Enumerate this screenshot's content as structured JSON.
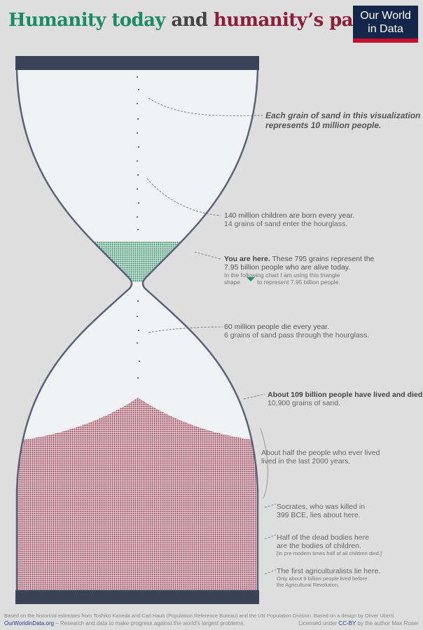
{
  "title": {
    "part1": "Humanity today",
    "part2": " and ",
    "part3": "humanity’s past",
    "color1": "#1c8a65",
    "color2": "#444444",
    "color3": "#8c1f37"
  },
  "logo": {
    "line1": "Our World",
    "line2": "in Data"
  },
  "annotations": {
    "grain": {
      "line1": "Each grain of sand in this visualization",
      "line2": "represents 10 million people."
    },
    "born": {
      "line1": "140 million children are born every year.",
      "line2": "14 grains of sand enter the hourglass."
    },
    "here": {
      "bold": "You are here.",
      "rest": " These 795 grains represent the",
      "line2": "7.95 billion people who are alive today.",
      "line3": "In the following chart I am using this triangle",
      "line4a": "shape",
      "line4b": "to represent 7.95 billion people."
    },
    "die": {
      "line1": "60 million people die every year.",
      "line2": "6 grains of sand pass through the hourglass."
    },
    "lived": {
      "line1": "About 109 billion people have lived and died.",
      "line2": "10,900 grains of sand."
    },
    "half": {
      "line1": "About half the people who ever lived",
      "line2": "lived in the last 2000 years."
    },
    "socrates": {
      "line1": "Socrates, who was killed in",
      "line2": "399 BCE, lies about here."
    },
    "children": {
      "line1": "Half of the dead bodies here",
      "line2": "are the bodies of children.",
      "line3": "[In pre-modern times half of all children died.]"
    },
    "agri": {
      "line1": "The first agriculturalists lie here.",
      "line2": "Only about 9 billion people lived before",
      "line3": "the Agricultural Revolution."
    }
  },
  "footer": {
    "line1": "Based on the historical estimates from Toshiko Kaneda and Carl Haub (Population Reference Bureau) and the UN Population Division. Based on a design by Oliver Uberti.",
    "site": "OurWorldinData.org",
    "tagline": " – Research and data to make progress against the world’s largest problems.",
    "license_pre": "Licensed under ",
    "license": "CC-BY",
    "license_post": " by the author Max Roser"
  },
  "colors": {
    "living": "#2e8a6b",
    "dead": "#8c3a4e",
    "frame": "#3a4358",
    "glass": "#f1f2f4"
  }
}
